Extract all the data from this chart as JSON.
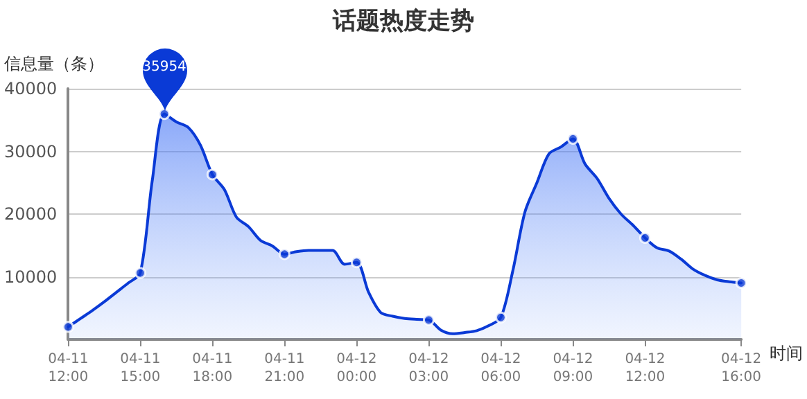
{
  "chart_data": {
    "type": "area",
    "title": "话题热度走势",
    "xlabel": "时间",
    "ylabel": "信息量（条）",
    "categories": [
      "04-11\n12:00",
      null,
      null,
      null,
      null,
      null,
      "04-11\n15:00",
      null,
      null,
      null,
      null,
      null,
      "04-11\n18:00",
      null,
      null,
      null,
      null,
      null,
      "04-11\n21:00",
      null,
      null,
      null,
      null,
      null,
      "04-12\n00:00",
      null,
      null,
      null,
      null,
      null,
      "04-12\n03:00",
      null,
      null,
      null,
      null,
      null,
      "04-12\n06:00",
      null,
      null,
      null,
      null,
      null,
      "04-12\n09:00",
      null,
      null,
      null,
      null,
      null,
      "04-12\n12:00",
      null,
      null,
      null,
      null,
      null,
      null,
      null,
      "04-12\n16:00"
    ],
    "ylim": [
      0,
      40000
    ],
    "yticks": [
      10000,
      20000,
      30000,
      40000
    ],
    "grid": "y",
    "line_style": "solid",
    "marker": "none",
    "series": [
      {
        "type": "area",
        "color": "#0a3ad6",
        "values": [
          2000,
          3300,
          4600,
          6000,
          7500,
          9000,
          10600,
          25400,
          35954,
          34700,
          33800,
          31000,
          26300,
          23900,
          19500,
          18000,
          15800,
          14900,
          13600,
          14000,
          14200,
          14200,
          14200,
          12000,
          12300,
          7500,
          4300,
          3700,
          3350,
          3200,
          3100,
          1500,
          900,
          1100,
          1400,
          2200,
          3500,
          11000,
          20300,
          25000,
          29600,
          30700,
          32000,
          28000,
          25700,
          22500,
          20000,
          18200,
          16200,
          14600,
          14100,
          12800,
          11200,
          10200,
          9500,
          9200,
          9000
        ]
      },
      {
        "type": "scatter",
        "color": "#0a3ad6",
        "marker": "circle",
        "values": [
          2000,
          null,
          null,
          null,
          null,
          null,
          10600,
          null,
          35954,
          null,
          null,
          null,
          26300,
          null,
          null,
          null,
          null,
          null,
          13600,
          null,
          null,
          null,
          null,
          null,
          12300,
          null,
          null,
          null,
          null,
          null,
          3100,
          null,
          null,
          null,
          null,
          null,
          3500,
          null,
          null,
          null,
          null,
          null,
          32000,
          null,
          null,
          null,
          null,
          null,
          16200,
          null,
          null,
          null,
          null,
          null,
          null,
          null,
          9000
        ]
      }
    ],
    "annotations": [
      {
        "text": "35954",
        "y": 35954
      }
    ]
  }
}
